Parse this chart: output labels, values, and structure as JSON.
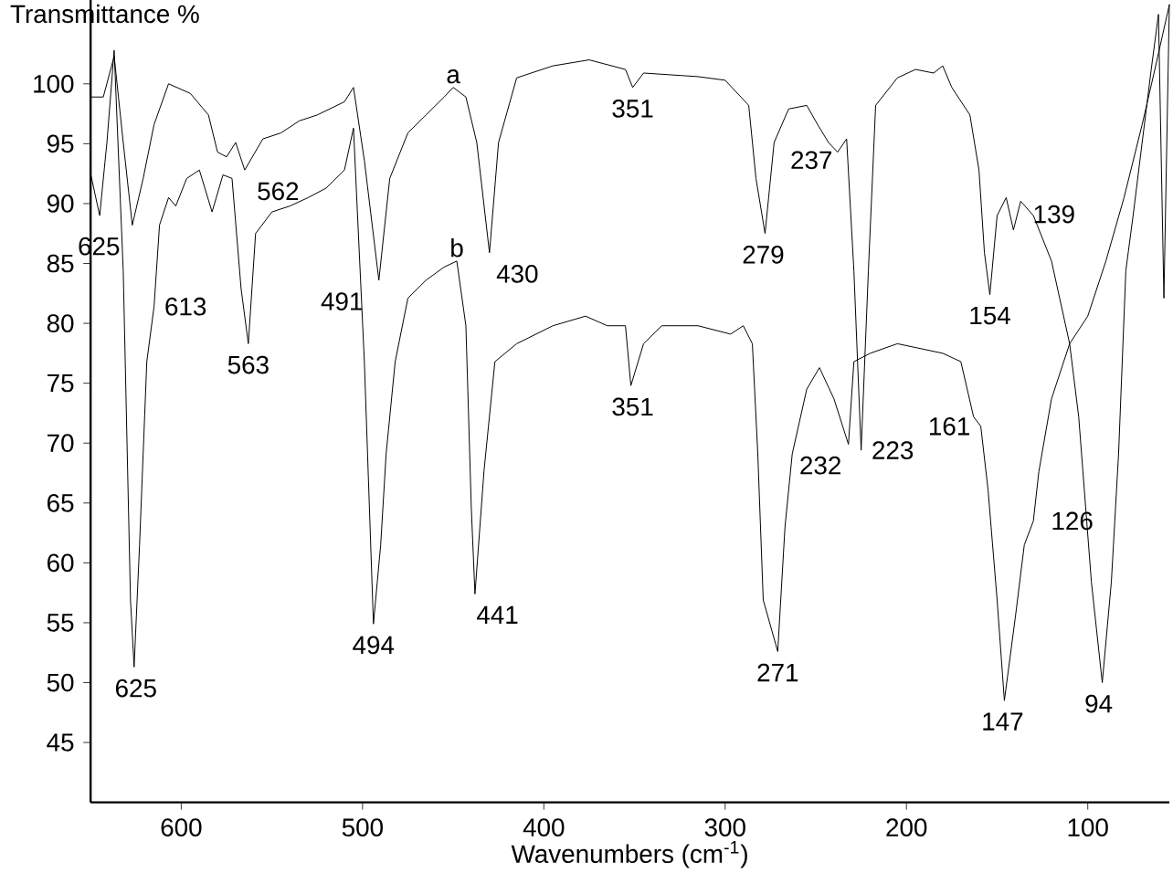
{
  "chart_data": {
    "type": "line",
    "xlabel": "Wavenumbers (cm$^{-1}$)",
    "ylabel": "Transmittance %",
    "xlim": [
      650,
      55
    ],
    "ylim": [
      40,
      107
    ],
    "xticks": [
      600,
      500,
      400,
      300,
      200,
      100
    ],
    "yticks": [
      45,
      50,
      55,
      60,
      65,
      70,
      75,
      80,
      85,
      90,
      95,
      100
    ],
    "grid": false,
    "legend": false,
    "marker": "none",
    "line_style": "solid",
    "series": [
      {
        "name": "a",
        "color": "#000000",
        "x": [
          650,
          643,
          637,
          632,
          627,
          621,
          615,
          607,
          595,
          585,
          580,
          575,
          570,
          565,
          555,
          545,
          535,
          525,
          510,
          505,
          499,
          491,
          485,
          475,
          465,
          455,
          450,
          443,
          437,
          430,
          425,
          415,
          395,
          375,
          355,
          351,
          345,
          315,
          300,
          287,
          283,
          278,
          273,
          265,
          255,
          249,
          243,
          238,
          233,
          229,
          225,
          221,
          217,
          205,
          195,
          185,
          180,
          175,
          165,
          160,
          157,
          154,
          150,
          145,
          141,
          137,
          130,
          120,
          110,
          105,
          98,
          92,
          87,
          83,
          79,
          75,
          70,
          65,
          61,
          58,
          55
        ],
        "values": [
          98.9,
          98.9,
          102.3,
          95.1,
          88.2,
          92.1,
          96.6,
          100.0,
          99.2,
          97.4,
          94.3,
          93.9,
          95.1,
          92.8,
          95.4,
          95.9,
          96.9,
          97.4,
          98.5,
          99.7,
          93.6,
          83.6,
          92.1,
          95.9,
          97.4,
          98.9,
          99.7,
          98.9,
          95.1,
          85.9,
          95.1,
          100.5,
          101.5,
          102.0,
          101.2,
          99.7,
          100.9,
          100.6,
          100.3,
          98.2,
          92.1,
          87.5,
          95.1,
          97.9,
          98.2,
          96.6,
          95.1,
          94.3,
          95.4,
          84.4,
          69.4,
          84.4,
          98.2,
          100.5,
          101.2,
          100.9,
          101.5,
          99.7,
          97.4,
          92.8,
          85.9,
          82.4,
          89.0,
          90.5,
          87.8,
          90.2,
          89.0,
          85.2,
          78.3,
          72.2,
          58.4,
          50.0,
          58.4,
          69.1,
          84.4,
          89.0,
          95.1,
          101.2,
          105.8,
          82.1,
          106.6
        ]
      },
      {
        "name": "b",
        "color": "#000000",
        "x": [
          650,
          645,
          641,
          637,
          632,
          628,
          626,
          623,
          619,
          615,
          612,
          607,
          603,
          597,
          590,
          583,
          577,
          572,
          567,
          563,
          559,
          550,
          540,
          530,
          520,
          510,
          505,
          499,
          494,
          490,
          487,
          482,
          475,
          465,
          455,
          448,
          443,
          440,
          438,
          433,
          427,
          415,
          395,
          377,
          365,
          355,
          352,
          345,
          335,
          315,
          297,
          290,
          285,
          282,
          279,
          271,
          267,
          263,
          255,
          248,
          240,
          232,
          229,
          220,
          205,
          180,
          170,
          163,
          159,
          155,
          150,
          146,
          140,
          135,
          130,
          127,
          120,
          110,
          100,
          90,
          80,
          70,
          63,
          55
        ],
        "values": [
          92.5,
          89.0,
          95.1,
          102.8,
          84.4,
          56.9,
          51.3,
          61.5,
          76.8,
          81.4,
          88.2,
          90.5,
          89.8,
          92.1,
          92.8,
          89.3,
          92.4,
          92.1,
          82.9,
          78.3,
          87.5,
          89.3,
          89.8,
          90.5,
          91.3,
          92.8,
          96.3,
          76.8,
          54.9,
          61.5,
          69.1,
          76.8,
          82.1,
          83.6,
          84.7,
          85.2,
          79.8,
          64.5,
          57.4,
          67.7,
          76.8,
          78.3,
          79.8,
          80.6,
          79.8,
          79.8,
          74.8,
          78.3,
          79.8,
          79.8,
          79.1,
          79.8,
          78.3,
          69.1,
          56.9,
          52.6,
          63.0,
          69.1,
          74.5,
          76.3,
          73.7,
          69.9,
          76.8,
          77.5,
          78.3,
          77.5,
          76.8,
          72.2,
          71.4,
          66.1,
          56.9,
          48.5,
          55.4,
          61.5,
          63.5,
          67.6,
          73.7,
          78.3,
          80.6,
          85.2,
          90.5,
          96.6,
          101.2,
          106.6
        ]
      }
    ],
    "annotations": [
      {
        "text": "625",
        "x": 625,
        "y": 88.2
      },
      {
        "text": "562",
        "x": 562,
        "y": 92.8
      },
      {
        "text": "491",
        "x": 491,
        "y": 83.6
      },
      {
        "text": "430",
        "x": 430,
        "y": 85.9
      },
      {
        "text": "351",
        "x": 351,
        "y": 99.7
      },
      {
        "text": "279",
        "x": 279,
        "y": 87.5
      },
      {
        "text": "237",
        "x": 237,
        "y": 95.4
      },
      {
        "text": "223",
        "x": 223,
        "y": 69.4
      },
      {
        "text": "154",
        "x": 154,
        "y": 82.4
      },
      {
        "text": "139",
        "x": 139,
        "y": 87.8
      },
      {
        "text": "94",
        "x": 94,
        "y": 50.0
      },
      {
        "text": "625",
        "x": 625,
        "y": 51.3
      },
      {
        "text": "613",
        "x": 613,
        "y": 81.4
      },
      {
        "text": "563",
        "x": 563,
        "y": 78.3
      },
      {
        "text": "494",
        "x": 494,
        "y": 54.9
      },
      {
        "text": "441",
        "x": 441,
        "y": 57.4
      },
      {
        "text": "351",
        "x": 351,
        "y": 74.8
      },
      {
        "text": "271",
        "x": 271,
        "y": 52.6
      },
      {
        "text": "232",
        "x": 232,
        "y": 69.9
      },
      {
        "text": "161",
        "x": 161,
        "y": 71.4
      },
      {
        "text": "147",
        "x": 147,
        "y": 48.5
      },
      {
        "text": "126",
        "x": 126,
        "y": 63.5
      }
    ]
  }
}
